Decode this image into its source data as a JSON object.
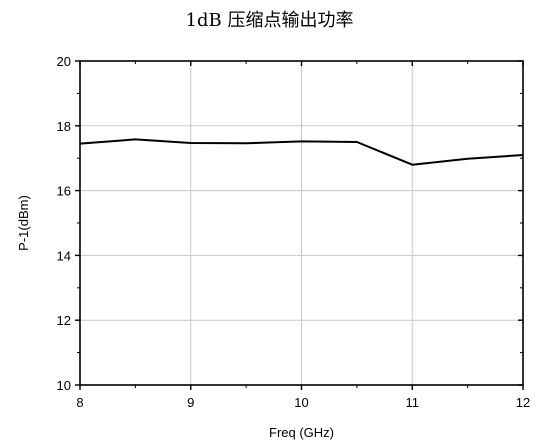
{
  "chart_data": {
    "type": "line",
    "title": "1dB 压缩点输出功率",
    "xlabel": "Freq (GHz)",
    "ylabel": "P-1(dBm)",
    "xlim": [
      8,
      12
    ],
    "ylim": [
      10,
      20
    ],
    "xticks": [
      8,
      9,
      10,
      11,
      12
    ],
    "yticks": [
      10,
      12,
      14,
      16,
      18,
      20
    ],
    "grid": true,
    "series": [
      {
        "color": "#000000",
        "x": [
          8,
          8.5,
          9,
          9.5,
          10,
          10.5,
          11,
          11.5,
          12
        ],
        "y": [
          17.45,
          17.58,
          17.47,
          17.46,
          17.52,
          17.5,
          16.8,
          16.98,
          17.1
        ]
      }
    ]
  }
}
